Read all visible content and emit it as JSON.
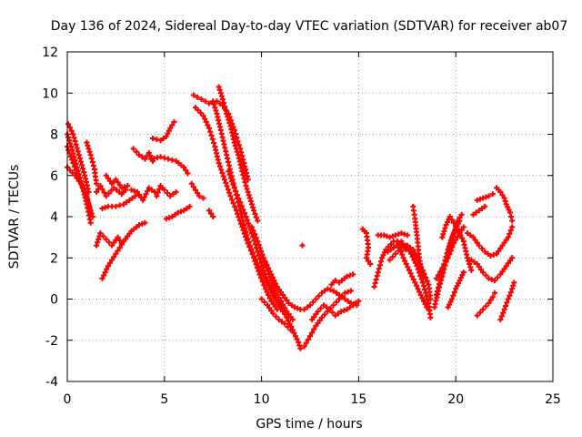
{
  "chart_data": {
    "type": "scatter",
    "title": "Day 136 of 2024, Sidereal Day-to-day VTEC variation (SDTVAR) for receiver ab07",
    "xlabel": "GPS time / hours",
    "ylabel": "SDTVAR / TECUs",
    "xlim": [
      0,
      25
    ],
    "ylim": [
      -4,
      12
    ],
    "xticks": [
      0,
      5,
      10,
      15,
      20,
      25
    ],
    "yticks": [
      -4,
      -2,
      0,
      2,
      4,
      6,
      8,
      10,
      12
    ],
    "grid": true,
    "legend": "none",
    "marker": "plus",
    "color": "#ff0000",
    "tracks": [
      [
        [
          0.0,
          7.4
        ],
        [
          0.3,
          6.6
        ],
        [
          0.6,
          5.9
        ],
        [
          0.9,
          5.2
        ],
        [
          1.1,
          4.6
        ],
        [
          1.3,
          4.0
        ]
      ],
      [
        [
          0.0,
          8.0
        ],
        [
          0.2,
          7.4
        ],
        [
          0.5,
          6.4
        ],
        [
          0.8,
          5.4
        ],
        [
          1.0,
          4.6
        ],
        [
          1.2,
          3.7
        ]
      ],
      [
        [
          0.0,
          6.4
        ],
        [
          0.4,
          6.0
        ],
        [
          0.7,
          5.6
        ],
        [
          1.0,
          5.0
        ],
        [
          1.2,
          4.2
        ]
      ],
      [
        [
          0.05,
          8.5
        ],
        [
          0.3,
          8.0
        ],
        [
          0.6,
          7.0
        ],
        [
          0.9,
          6.0
        ],
        [
          1.1,
          5.2
        ]
      ],
      [
        [
          1.0,
          7.6
        ],
        [
          1.2,
          7.0
        ],
        [
          1.4,
          6.3
        ],
        [
          1.5,
          5.6
        ]
      ],
      [
        [
          1.5,
          5.2
        ],
        [
          1.7,
          5.5
        ],
        [
          2.0,
          5.0
        ],
        [
          2.4,
          5.4
        ],
        [
          2.8,
          5.1
        ],
        [
          3.0,
          5.3
        ]
      ],
      [
        [
          1.8,
          4.4
        ],
        [
          2.1,
          4.5
        ],
        [
          2.5,
          4.5
        ],
        [
          2.9,
          4.6
        ],
        [
          3.2,
          4.8
        ],
        [
          3.5,
          5.0
        ]
      ],
      [
        [
          1.8,
          1.0
        ],
        [
          2.1,
          1.6
        ],
        [
          2.5,
          2.2
        ],
        [
          2.9,
          2.8
        ],
        [
          3.3,
          3.3
        ],
        [
          3.7,
          3.6
        ],
        [
          4.0,
          3.7
        ]
      ],
      [
        [
          1.5,
          2.6
        ],
        [
          1.7,
          3.2
        ],
        [
          2.0,
          2.9
        ],
        [
          2.3,
          2.6
        ],
        [
          2.6,
          3.0
        ],
        [
          2.8,
          2.7
        ]
      ],
      [
        [
          2.0,
          6.0
        ],
        [
          2.3,
          5.6
        ],
        [
          2.5,
          5.8
        ],
        [
          2.8,
          5.4
        ],
        [
          3.1,
          5.5
        ]
      ],
      [
        [
          3.4,
          7.3
        ],
        [
          3.7,
          7.0
        ],
        [
          4.0,
          6.8
        ],
        [
          4.2,
          7.1
        ],
        [
          4.4,
          6.7
        ]
      ],
      [
        [
          3.3,
          5.3
        ],
        [
          3.6,
          5.2
        ],
        [
          3.9,
          4.8
        ],
        [
          4.2,
          5.4
        ],
        [
          4.5,
          5.2
        ]
      ],
      [
        [
          4.3,
          6.8
        ],
        [
          4.8,
          6.9
        ],
        [
          5.2,
          6.8
        ],
        [
          5.6,
          6.7
        ],
        [
          6.0,
          6.4
        ],
        [
          6.2,
          6.1
        ]
      ],
      [
        [
          4.4,
          7.8
        ],
        [
          4.8,
          7.7
        ],
        [
          5.1,
          7.9
        ],
        [
          5.3,
          8.3
        ],
        [
          5.5,
          8.6
        ]
      ],
      [
        [
          4.6,
          5.0
        ],
        [
          4.8,
          5.5
        ],
        [
          5.0,
          5.3
        ],
        [
          5.3,
          5.0
        ],
        [
          5.6,
          5.2
        ]
      ],
      [
        [
          5.1,
          3.9
        ],
        [
          5.4,
          4.0
        ],
        [
          5.7,
          4.2
        ],
        [
          6.0,
          4.3
        ],
        [
          6.3,
          4.5
        ]
      ],
      [
        [
          6.4,
          5.6
        ],
        [
          6.6,
          5.3
        ],
        [
          6.8,
          5.0
        ],
        [
          7.0,
          4.9
        ]
      ],
      [
        [
          7.3,
          4.3
        ],
        [
          7.5,
          4.0
        ]
      ],
      [
        [
          6.5,
          9.9
        ],
        [
          6.9,
          9.7
        ],
        [
          7.3,
          9.5
        ],
        [
          7.7,
          9.6
        ],
        [
          8.0,
          9.4
        ],
        [
          8.3,
          9.0
        ],
        [
          8.6,
          8.2
        ],
        [
          8.9,
          7.3
        ],
        [
          9.1,
          6.6
        ],
        [
          9.3,
          5.8
        ]
      ],
      [
        [
          7.8,
          10.3
        ],
        [
          8.0,
          9.7
        ],
        [
          8.2,
          9.0
        ],
        [
          8.4,
          8.4
        ],
        [
          8.6,
          7.6
        ],
        [
          8.8,
          7.0
        ],
        [
          9.0,
          6.2
        ],
        [
          9.2,
          5.5
        ],
        [
          9.4,
          4.9
        ],
        [
          9.6,
          4.3
        ],
        [
          9.8,
          3.8
        ]
      ],
      [
        [
          6.6,
          9.3
        ],
        [
          7.0,
          8.9
        ],
        [
          7.3,
          8.3
        ],
        [
          7.6,
          7.4
        ],
        [
          7.8,
          6.6
        ],
        [
          8.1,
          5.8
        ],
        [
          8.4,
          5.0
        ],
        [
          8.7,
          4.3
        ],
        [
          9.0,
          3.5
        ],
        [
          9.3,
          2.7
        ],
        [
          9.6,
          2.0
        ],
        [
          9.9,
          1.2
        ],
        [
          10.2,
          0.5
        ],
        [
          10.5,
          -0.1
        ],
        [
          10.8,
          -0.5
        ]
      ],
      [
        [
          7.5,
          9.6
        ],
        [
          7.7,
          9.0
        ],
        [
          7.9,
          8.2
        ],
        [
          8.2,
          7.0
        ],
        [
          8.5,
          5.8
        ],
        [
          8.8,
          4.7
        ],
        [
          9.1,
          3.6
        ],
        [
          9.4,
          2.6
        ],
        [
          9.7,
          1.9
        ],
        [
          10.0,
          1.3
        ],
        [
          10.3,
          0.8
        ],
        [
          10.6,
          0.3
        ],
        [
          10.9,
          -0.2
        ],
        [
          11.1,
          -0.6
        ]
      ],
      [
        [
          8.3,
          6.2
        ],
        [
          8.6,
          5.4
        ],
        [
          8.9,
          4.7
        ],
        [
          9.2,
          4.0
        ],
        [
          9.5,
          3.2
        ],
        [
          9.8,
          2.3
        ],
        [
          10.1,
          1.4
        ],
        [
          10.4,
          0.6
        ],
        [
          10.7,
          0.0
        ],
        [
          11.0,
          -0.4
        ],
        [
          11.3,
          -0.9
        ],
        [
          11.6,
          -1.5
        ],
        [
          11.9,
          -2.1
        ],
        [
          12.0,
          -2.4
        ]
      ],
      [
        [
          9.5,
          3.5
        ],
        [
          9.8,
          2.8
        ],
        [
          10.1,
          2.0
        ],
        [
          10.4,
          1.2
        ],
        [
          10.7,
          0.4
        ],
        [
          11.0,
          -0.1
        ],
        [
          11.3,
          -0.6
        ],
        [
          11.6,
          -1.0
        ]
      ],
      [
        [
          10.2,
          1.8
        ],
        [
          10.5,
          1.2
        ],
        [
          10.8,
          0.6
        ],
        [
          11.1,
          0.2
        ],
        [
          11.4,
          -0.2
        ],
        [
          11.7,
          -0.4
        ],
        [
          12.0,
          -0.5
        ]
      ],
      [
        [
          10.0,
          0.0
        ],
        [
          10.3,
          -0.3
        ],
        [
          10.6,
          -0.7
        ],
        [
          10.9,
          -1.0
        ],
        [
          11.2,
          -1.2
        ],
        [
          11.5,
          -1.5
        ]
      ],
      [
        [
          12.2,
          -2.3
        ],
        [
          12.5,
          -1.8
        ],
        [
          12.8,
          -1.3
        ],
        [
          13.1,
          -0.9
        ],
        [
          13.4,
          -0.6
        ],
        [
          13.7,
          -0.3
        ],
        [
          14.0,
          0.0
        ],
        [
          14.3,
          0.3
        ],
        [
          14.6,
          0.4
        ]
      ],
      [
        [
          12.2,
          -0.5
        ],
        [
          12.5,
          -0.3
        ],
        [
          12.8,
          0.0
        ],
        [
          13.1,
          0.3
        ],
        [
          13.4,
          0.5
        ],
        [
          13.7,
          0.4
        ],
        [
          14.0,
          0.2
        ],
        [
          14.3,
          0.0
        ],
        [
          14.6,
          -0.2
        ],
        [
          14.9,
          -0.3
        ]
      ],
      [
        [
          12.6,
          -1.0
        ],
        [
          12.9,
          -0.6
        ],
        [
          13.2,
          -0.3
        ],
        [
          13.5,
          -0.5
        ],
        [
          13.8,
          -0.8
        ],
        [
          14.1,
          -0.6
        ],
        [
          14.4,
          -0.5
        ],
        [
          14.7,
          -0.3
        ],
        [
          15.0,
          -0.1
        ]
      ],
      [
        [
          12.1,
          2.6
        ]
      ],
      [
        [
          13.6,
          0.7
        ],
        [
          13.8,
          0.9
        ],
        [
          14.0,
          0.8
        ],
        [
          14.4,
          1.1
        ],
        [
          14.7,
          1.2
        ]
      ],
      [
        [
          15.2,
          3.4
        ],
        [
          15.4,
          3.2
        ],
        [
          15.5,
          2.5
        ],
        [
          15.4,
          2.0
        ],
        [
          15.6,
          1.7
        ]
      ],
      [
        [
          15.8,
          0.6
        ],
        [
          16.0,
          1.3
        ],
        [
          16.2,
          2.0
        ],
        [
          16.4,
          2.4
        ],
        [
          16.8,
          2.8
        ],
        [
          17.2,
          2.8
        ],
        [
          17.4,
          2.4
        ]
      ],
      [
        [
          16.0,
          3.1
        ],
        [
          16.3,
          3.1
        ],
        [
          16.6,
          3.0
        ],
        [
          16.9,
          3.1
        ],
        [
          17.2,
          3.2
        ],
        [
          17.5,
          3.1
        ]
      ],
      [
        [
          16.6,
          1.9
        ],
        [
          16.9,
          2.2
        ],
        [
          17.2,
          2.5
        ],
        [
          17.5,
          2.6
        ],
        [
          17.8,
          2.4
        ],
        [
          18.0,
          2.0
        ],
        [
          18.3,
          1.4
        ],
        [
          18.6,
          0.7
        ],
        [
          18.7,
          0.0
        ]
      ],
      [
        [
          16.5,
          2.3
        ],
        [
          16.8,
          2.5
        ],
        [
          17.1,
          2.7
        ],
        [
          17.4,
          2.6
        ],
        [
          17.7,
          2.2
        ],
        [
          18.0,
          1.6
        ],
        [
          18.3,
          0.8
        ],
        [
          18.6,
          -0.2
        ],
        [
          18.7,
          -0.9
        ]
      ],
      [
        [
          17.0,
          2.8
        ],
        [
          17.3,
          2.0
        ],
        [
          17.6,
          1.4
        ],
        [
          17.9,
          0.8
        ],
        [
          18.2,
          0.2
        ],
        [
          18.5,
          -0.4
        ],
        [
          18.6,
          -0.5
        ]
      ],
      [
        [
          17.8,
          4.5
        ],
        [
          17.9,
          3.9
        ],
        [
          18.0,
          3.1
        ],
        [
          18.1,
          2.2
        ],
        [
          18.2,
          1.5
        ],
        [
          18.3,
          0.8
        ]
      ],
      [
        [
          18.9,
          -0.4
        ],
        [
          19.1,
          0.4
        ],
        [
          19.3,
          1.1
        ],
        [
          19.5,
          1.8
        ],
        [
          19.7,
          2.6
        ],
        [
          19.9,
          3.2
        ],
        [
          20.1,
          3.8
        ],
        [
          20.3,
          4.1
        ]
      ],
      [
        [
          19.0,
          0.2
        ],
        [
          19.2,
          0.9
        ],
        [
          19.4,
          1.7
        ],
        [
          19.6,
          2.4
        ],
        [
          19.8,
          3.0
        ],
        [
          20.0,
          3.4
        ],
        [
          20.2,
          3.8
        ]
      ],
      [
        [
          19.0,
          1.0
        ],
        [
          19.3,
          1.5
        ],
        [
          19.6,
          2.0
        ],
        [
          19.9,
          2.7
        ],
        [
          20.2,
          3.2
        ],
        [
          20.4,
          3.5
        ]
      ],
      [
        [
          19.3,
          3.0
        ],
        [
          19.5,
          3.6
        ],
        [
          19.7,
          4.0
        ],
        [
          19.9,
          3.7
        ],
        [
          20.1,
          3.4
        ],
        [
          20.4,
          2.8
        ],
        [
          20.6,
          2.0
        ],
        [
          20.8,
          1.4
        ]
      ],
      [
        [
          19.6,
          -0.4
        ],
        [
          19.8,
          0.0
        ],
        [
          20.0,
          0.5
        ],
        [
          20.2,
          0.9
        ],
        [
          20.4,
          1.3
        ]
      ],
      [
        [
          20.6,
          3.2
        ],
        [
          20.9,
          3.0
        ],
        [
          21.2,
          2.6
        ],
        [
          21.5,
          2.3
        ],
        [
          21.8,
          2.1
        ],
        [
          22.1,
          2.2
        ],
        [
          22.4,
          2.6
        ],
        [
          22.7,
          3.0
        ],
        [
          22.9,
          3.5
        ]
      ],
      [
        [
          20.8,
          1.9
        ],
        [
          21.1,
          1.7
        ],
        [
          21.4,
          1.3
        ],
        [
          21.7,
          1.0
        ],
        [
          22.0,
          0.9
        ],
        [
          22.3,
          1.2
        ],
        [
          22.6,
          1.6
        ],
        [
          22.9,
          2.0
        ]
      ],
      [
        [
          21.1,
          4.8
        ],
        [
          21.4,
          4.9
        ],
        [
          21.7,
          5.0
        ],
        [
          21.9,
          5.1
        ]
      ],
      [
        [
          20.9,
          4.1
        ],
        [
          21.2,
          4.3
        ],
        [
          21.5,
          4.5
        ]
      ],
      [
        [
          21.1,
          -0.8
        ],
        [
          21.4,
          -0.5
        ],
        [
          21.7,
          -0.2
        ],
        [
          21.9,
          0.1
        ],
        [
          22.0,
          0.3
        ]
      ],
      [
        [
          22.1,
          5.4
        ],
        [
          22.3,
          5.2
        ],
        [
          22.5,
          4.9
        ],
        [
          22.6,
          4.6
        ],
        [
          22.8,
          4.2
        ],
        [
          22.9,
          3.8
        ]
      ],
      [
        [
          22.3,
          -1.0
        ],
        [
          22.5,
          -0.5
        ],
        [
          22.7,
          0.0
        ],
        [
          22.9,
          0.5
        ],
        [
          23.0,
          0.8
        ]
      ]
    ]
  }
}
